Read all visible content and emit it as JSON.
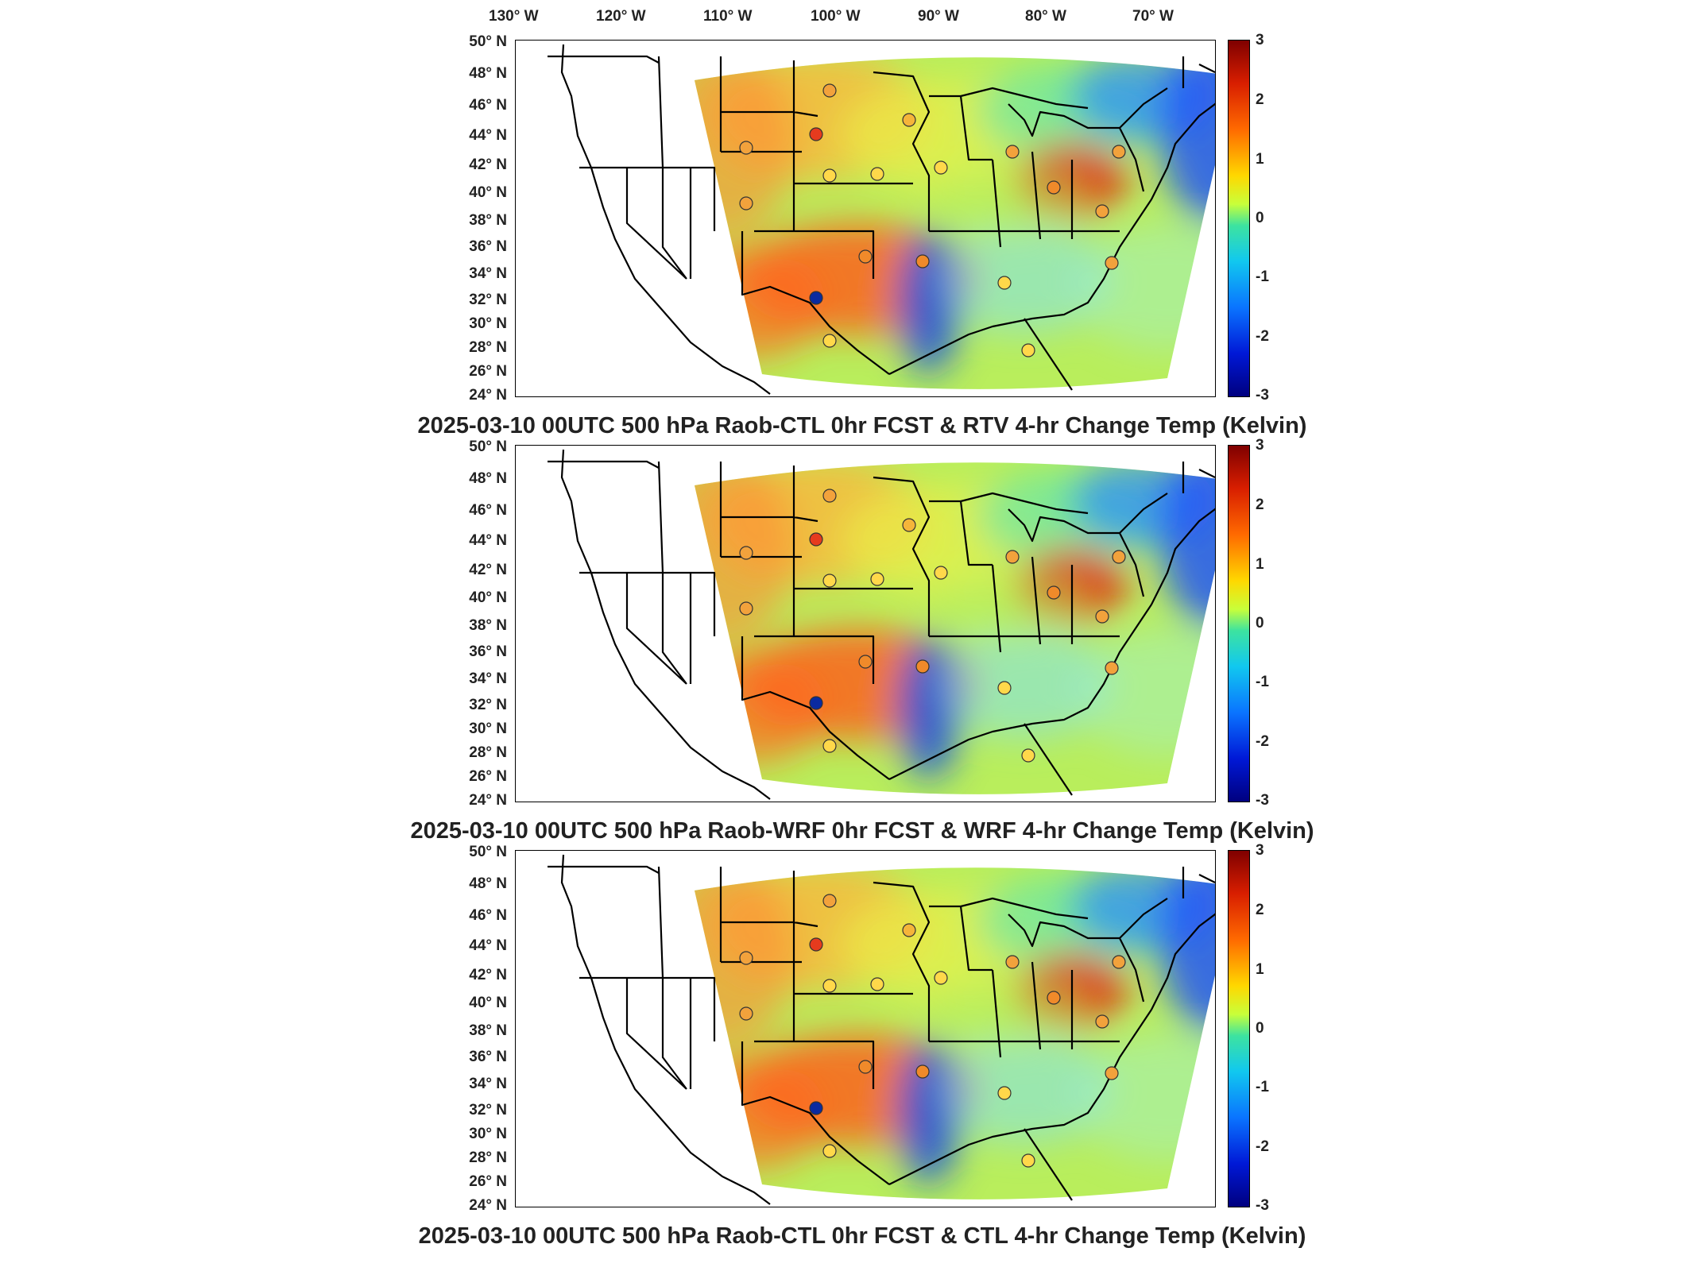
{
  "longitude_labels": [
    "130° W",
    "120° W",
    "110° W",
    "100° W",
    "90° W",
    "80° W",
    "70° W"
  ],
  "latitude_labels": [
    "50° N",
    "48° N",
    "46° N",
    "44° N",
    "42° N",
    "40° N",
    "38° N",
    "36° N",
    "34° N",
    "32° N",
    "30° N",
    "28° N",
    "26° N",
    "24° N"
  ],
  "colorbar": {
    "ticks": [
      "3",
      "2",
      "1",
      "0",
      "-1",
      "-2",
      "-3"
    ],
    "colors": [
      "#7f0000",
      "#d81e00",
      "#ff6a00",
      "#ffd800",
      "#3de3a0",
      "#11c8ef",
      "#0a74ff",
      "#0018d6",
      "#00007f"
    ]
  },
  "panels": [
    {
      "title": "2025-03-10 00UTC 500 hPa Raob-CTL 0hr FCST & RTV 4-hr Change Temp (Kelvin)"
    },
    {
      "title": "2025-03-10 00UTC 500 hPa Raob-WRF 0hr FCST & WRF 4-hr Change Temp (Kelvin)"
    },
    {
      "title": "2025-03-10 00UTC 500 hPa Raob-CTL 0hr FCST & CTL 4-hr Change Temp (Kelvin)"
    }
  ]
}
